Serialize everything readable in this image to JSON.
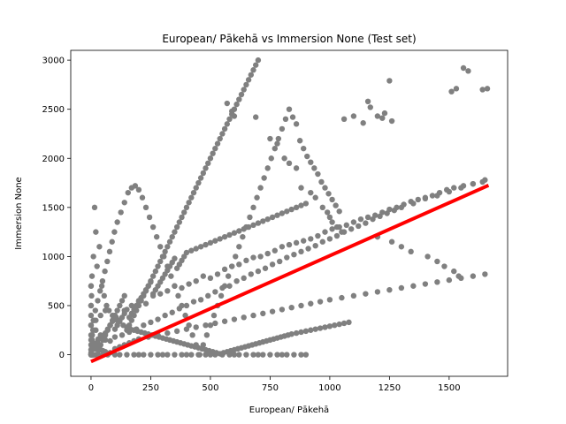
{
  "chart_data": {
    "type": "scatter",
    "title": "European/ Pākehā vs Immersion None (Test set)",
    "xlabel": "European/ Pākehā",
    "ylabel": "Immersion None",
    "xlim": [
      -85,
      1745
    ],
    "ylim": [
      -220,
      3100
    ],
    "xticks": [
      0,
      250,
      500,
      750,
      1000,
      1250,
      1500
    ],
    "yticks": [
      0,
      500,
      1000,
      1500,
      2000,
      2500,
      3000
    ],
    "grid": false,
    "legend": "none",
    "colors": {
      "points": "#808080",
      "fit_line": "#ff0000"
    },
    "series": [
      {
        "kind": "points",
        "x": [
          0,
          0,
          0,
          5,
          10,
          20,
          30,
          50,
          70,
          100,
          120,
          150,
          180,
          200,
          220,
          250,
          280,
          300,
          320,
          350,
          380,
          400,
          420,
          450,
          480,
          500,
          520,
          550,
          580,
          600,
          620,
          650,
          680,
          700,
          720,
          750,
          780,
          800,
          820,
          850,
          880,
          900,
          0,
          3,
          8,
          15,
          25,
          40,
          60,
          80,
          100,
          130,
          160,
          190,
          220,
          250,
          280,
          310,
          340,
          370,
          400,
          430,
          460,
          490,
          520,
          550,
          580,
          610,
          640,
          670,
          700,
          730,
          760,
          790,
          820,
          850,
          880,
          910,
          940,
          970,
          1000,
          1030,
          1060,
          1090,
          1120,
          1150,
          1180,
          1210,
          1240,
          1270,
          1300,
          1350,
          1400,
          1450,
          1500,
          1550,
          1600,
          1650,
          0,
          0,
          0,
          0,
          5,
          10,
          20,
          30,
          40,
          60,
          80,
          110,
          140,
          170,
          200,
          230,
          260,
          290,
          320,
          350,
          380,
          410,
          440,
          470,
          500,
          530,
          560,
          590,
          620,
          650,
          680,
          710,
          740,
          770,
          800,
          830,
          860,
          890,
          920,
          950,
          980,
          1010,
          1040,
          1070,
          1100,
          1130,
          1160,
          1190,
          1220,
          1250,
          1280,
          1310,
          1340,
          1370,
          1400,
          1430,
          1460,
          1490,
          1520,
          1560,
          1600,
          1640,
          0,
          2,
          4,
          10,
          15,
          20,
          25,
          35,
          45,
          55,
          65,
          75,
          90,
          105,
          120,
          135,
          150,
          165,
          180,
          195,
          210,
          225,
          240,
          255,
          270,
          285,
          300,
          315,
          330,
          345,
          360,
          375,
          390,
          405,
          420,
          435,
          450,
          465,
          480,
          495,
          510,
          525,
          540,
          555,
          570,
          585,
          600,
          615,
          630,
          645,
          660,
          675,
          690,
          705,
          720,
          735,
          750,
          765,
          780,
          795,
          810,
          825,
          840,
          860,
          880,
          900,
          920,
          940,
          960,
          980,
          1000,
          1020,
          1040,
          1060,
          1080,
          0,
          0,
          5,
          10,
          15,
          20,
          30,
          40,
          50,
          60,
          80,
          100,
          120,
          140,
          160,
          180,
          200,
          240,
          280,
          320,
          360,
          400,
          440,
          480,
          520,
          560,
          600,
          640,
          680,
          720,
          760,
          800,
          840,
          880,
          920,
          960,
          1000,
          1050,
          1100,
          1150,
          1200,
          1250,
          1300,
          1350,
          1400,
          1450,
          1500,
          1550,
          1600,
          1650,
          0,
          0,
          0,
          8,
          12,
          18,
          28,
          38,
          48,
          58,
          68,
          78,
          88,
          98,
          110,
          125,
          140,
          155,
          170,
          185,
          200,
          215,
          230,
          245,
          260,
          275,
          290,
          305,
          320,
          335,
          350,
          365,
          380,
          395,
          410,
          425,
          440,
          455,
          470,
          485,
          500,
          515,
          530,
          545,
          560,
          575,
          590,
          605,
          620,
          635,
          650,
          665,
          680,
          695,
          710,
          725,
          740,
          755,
          770,
          785,
          800,
          815,
          830,
          845,
          860,
          875,
          890,
          905,
          920,
          935,
          950,
          965,
          980,
          995,
          1010,
          1025,
          1040,
          5,
          5,
          10,
          10,
          20,
          20,
          30,
          40,
          50,
          60,
          70,
          80,
          90,
          100,
          110,
          120,
          130,
          140,
          150,
          160,
          170,
          180,
          190,
          200,
          210,
          220,
          230,
          240,
          250,
          260,
          270,
          280,
          290,
          300,
          310,
          320,
          330,
          340,
          350,
          360,
          370,
          380,
          390,
          400,
          410,
          420,
          430,
          440,
          450,
          460,
          470,
          480,
          490,
          500,
          510,
          520,
          530,
          540,
          550,
          560,
          570,
          580,
          590,
          600,
          610,
          620,
          630,
          640,
          650,
          660,
          670,
          680,
          690,
          700,
          1560,
          1580,
          1510,
          1530,
          1640,
          1660,
          1250,
          1160,
          1170,
          1100,
          1060,
          1140,
          1200,
          1220,
          1230,
          1260,
          570,
          590,
          600,
          690,
          750,
          780,
          810,
          830,
          860,
          880,
          920,
          940,
          970,
          990,
          1000,
          1010,
          1030,
          1050,
          1200,
          1260,
          1300,
          1340,
          1410,
          1450,
          1480,
          1520,
          1540,
          0,
          10,
          20,
          30,
          40,
          50,
          60,
          70,
          80,
          90,
          100,
          110,
          120,
          130,
          140,
          150,
          160,
          170,
          180,
          190,
          200,
          210,
          220,
          230,
          240,
          250,
          260,
          270,
          280,
          290,
          300,
          310,
          320,
          330,
          340,
          350,
          360,
          370,
          380,
          390,
          400,
          420,
          440,
          460,
          480,
          500,
          520,
          540,
          560,
          580,
          600,
          620,
          640,
          660,
          680,
          700,
          720,
          740,
          760,
          780,
          800,
          820,
          840,
          860,
          880,
          900
        ],
        "y": [
          0,
          0,
          0,
          0,
          0,
          0,
          0,
          0,
          0,
          0,
          0,
          0,
          0,
          0,
          0,
          0,
          0,
          0,
          0,
          0,
          0,
          0,
          0,
          0,
          0,
          0,
          0,
          0,
          0,
          0,
          0,
          0,
          0,
          0,
          0,
          0,
          0,
          0,
          0,
          0,
          0,
          0,
          50,
          80,
          60,
          90,
          120,
          100,
          150,
          140,
          180,
          200,
          230,
          260,
          300,
          330,
          360,
          400,
          430,
          470,
          500,
          540,
          560,
          600,
          640,
          680,
          700,
          750,
          780,
          820,
          850,
          880,
          920,
          950,
          990,
          1020,
          1050,
          1080,
          1110,
          1150,
          1180,
          1210,
          1250,
          1280,
          1310,
          1340,
          1380,
          1410,
          1440,
          1470,
          1500,
          1540,
          1590,
          1620,
          1660,
          1700,
          1740,
          1780,
          100,
          300,
          500,
          700,
          200,
          350,
          250,
          150,
          400,
          450,
          300,
          350,
          450,
          500,
          550,
          520,
          600,
          620,
          650,
          700,
          680,
          720,
          750,
          800,
          780,
          820,
          870,
          900,
          920,
          960,
          990,
          1000,
          1030,
          1060,
          1100,
          1120,
          1140,
          1160,
          1180,
          1210,
          1250,
          1280,
          1300,
          1320,
          1350,
          1380,
          1400,
          1420,
          1450,
          1480,
          1500,
          1530,
          1560,
          1580,
          1600,
          1620,
          1650,
          1680,
          1700,
          1720,
          1740,
          1760,
          400,
          600,
          800,
          1000,
          1500,
          1250,
          900,
          1100,
          700,
          600,
          500,
          450,
          400,
          380,
          350,
          300,
          280,
          260,
          250,
          240,
          230,
          220,
          210,
          200,
          190,
          180,
          170,
          160,
          150,
          140,
          130,
          120,
          110,
          100,
          90,
          80,
          70,
          60,
          50,
          40,
          30,
          20,
          10,
          20,
          30,
          40,
          50,
          60,
          70,
          80,
          90,
          100,
          110,
          120,
          130,
          140,
          150,
          160,
          170,
          180,
          190,
          200,
          210,
          220,
          230,
          240,
          250,
          260,
          270,
          280,
          290,
          300,
          310,
          320,
          330,
          200,
          150,
          100,
          120,
          80,
          60,
          70,
          50,
          40,
          30,
          20,
          60,
          80,
          100,
          120,
          140,
          160,
          180,
          200,
          220,
          240,
          260,
          280,
          300,
          320,
          340,
          360,
          380,
          400,
          420,
          440,
          460,
          480,
          500,
          520,
          540,
          560,
          580,
          600,
          620,
          640,
          660,
          680,
          700,
          720,
          740,
          760,
          780,
          800,
          820,
          300,
          500,
          700,
          250,
          350,
          450,
          550,
          650,
          750,
          850,
          950,
          1050,
          1150,
          1250,
          1350,
          1450,
          1550,
          1650,
          1700,
          1720,
          1680,
          1600,
          1500,
          1400,
          1300,
          1200,
          1100,
          1000,
          900,
          800,
          700,
          600,
          500,
          400,
          300,
          200,
          100,
          0,
          100,
          200,
          300,
          400,
          500,
          600,
          700,
          800,
          900,
          1000,
          1100,
          1200,
          1300,
          1400,
          1500,
          1600,
          1700,
          1800,
          1900,
          2000,
          2100,
          2200,
          2300,
          2400,
          2500,
          2420,
          2350,
          2180,
          2100,
          2020,
          1960,
          1900,
          1840,
          1760,
          1700,
          1640,
          1580,
          1520,
          1460,
          0,
          150,
          0,
          250,
          0,
          350,
          50,
          100,
          150,
          200,
          250,
          300,
          350,
          400,
          450,
          500,
          550,
          600,
          250,
          300,
          350,
          400,
          450,
          500,
          550,
          600,
          650,
          700,
          750,
          800,
          850,
          900,
          950,
          1000,
          1050,
          1100,
          1150,
          1200,
          1250,
          1300,
          1350,
          1400,
          1450,
          1500,
          1550,
          1600,
          1650,
          1700,
          1750,
          1800,
          1850,
          1900,
          1950,
          2000,
          2050,
          2100,
          2150,
          2200,
          2250,
          2300,
          2350,
          2400,
          2450,
          2500,
          2550,
          2600,
          2650,
          2700,
          2750,
          2800,
          2850,
          2900,
          2950,
          3000,
          2920,
          2890,
          2680,
          2710,
          2700,
          2710,
          2790,
          2580,
          2520,
          2430,
          2400,
          2360,
          2430,
          2410,
          2460,
          2380,
          2560,
          2480,
          2430,
          2420,
          2200,
          2150,
          2000,
          1950,
          1900,
          1700,
          1650,
          1600,
          1500,
          1450,
          1400,
          1350,
          1300,
          1250,
          1200,
          1150,
          1100,
          1050,
          1000,
          950,
          900,
          850,
          800,
          20,
          60,
          110,
          160,
          200,
          180,
          220,
          260,
          300,
          340,
          260,
          300,
          340,
          380,
          420,
          460,
          380,
          420,
          460,
          500,
          540,
          580,
          620,
          660,
          700,
          740,
          620,
          660,
          700,
          740,
          780,
          820,
          860,
          900,
          940,
          980,
          880,
          920,
          960,
          1000,
          1040,
          1060,
          1080,
          1100,
          1120,
          1140,
          1160,
          1180,
          1200,
          1220,
          1240,
          1260,
          1280,
          1300,
          1320,
          1340,
          1360,
          1380,
          1400,
          1420,
          1440,
          1460,
          1480,
          1500,
          1520,
          1540
        ]
      },
      {
        "kind": "fit_line",
        "x": [
          0,
          1665
        ],
        "y": [
          -70,
          1725
        ]
      }
    ]
  }
}
